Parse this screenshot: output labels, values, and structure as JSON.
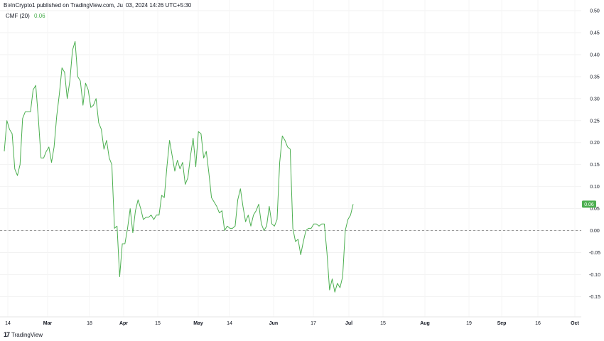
{
  "header": {
    "text": "BeInCrypto1 published on TradingView.com, Jul 03, 2024 14:26 UTC+5:30"
  },
  "indicator": {
    "label": "CMF (20)",
    "value": "0.06",
    "color": "#4caf50"
  },
  "logo": {
    "mark": "17",
    "text": "TradingView"
  },
  "chart_data": {
    "type": "line",
    "title": "",
    "xlabel": "",
    "ylabel": "",
    "ylim": [
      -0.15,
      0.5
    ],
    "y_ticks": [
      "0.50",
      "0.45",
      "0.40",
      "0.35",
      "0.30",
      "0.25",
      "0.20",
      "0.15",
      "0.10",
      "0.05",
      "0.00",
      "-0.05",
      "-0.10",
      "-0.15"
    ],
    "x_ticks": [
      "14",
      "Mar",
      "18",
      "Apr",
      "15",
      "May",
      "14",
      "Jun",
      "17",
      "Jul",
      "15",
      "Aug",
      "19",
      "Sep",
      "16",
      "Oct"
    ],
    "reference_line": 0.0,
    "last_value_label": "0.06",
    "series": [
      {
        "color": "#4caf50",
        "values": [
          0.18,
          0.25,
          0.23,
          0.22,
          0.14,
          0.125,
          0.15,
          0.255,
          0.27,
          0.27,
          0.27,
          0.32,
          0.33,
          0.255,
          0.165,
          0.165,
          0.18,
          0.19,
          0.155,
          0.19,
          0.26,
          0.31,
          0.37,
          0.36,
          0.3,
          0.34,
          0.41,
          0.43,
          0.35,
          0.34,
          0.285,
          0.335,
          0.32,
          0.28,
          0.285,
          0.3,
          0.245,
          0.23,
          0.185,
          0.205,
          0.165,
          0.15,
          0.005,
          0.01,
          -0.105,
          -0.03,
          -0.03,
          0.005,
          0.05,
          -0.005,
          0.045,
          0.07,
          0.05,
          0.025,
          0.03,
          0.03,
          0.035,
          0.025,
          0.035,
          0.035,
          0.08,
          0.075,
          0.145,
          0.205,
          0.17,
          0.135,
          0.16,
          0.14,
          0.155,
          0.105,
          0.12,
          0.17,
          0.21,
          0.145,
          0.225,
          0.22,
          0.165,
          0.18,
          0.13,
          0.075,
          0.065,
          0.055,
          0.04,
          0.045,
          0.0,
          0.01,
          0.005,
          0.005,
          0.01,
          0.07,
          0.095,
          0.055,
          0.02,
          0.035,
          0.01,
          0.035,
          0.045,
          0.06,
          0.015,
          0.0,
          0.01,
          0.055,
          0.015,
          0.01,
          0.025,
          0.155,
          0.215,
          0.205,
          0.19,
          0.185,
          0.005,
          -0.025,
          -0.02,
          -0.055,
          -0.025,
          0.0,
          0.005,
          0.005,
          0.015,
          0.015,
          0.01,
          0.015,
          0.015,
          -0.05,
          -0.135,
          -0.11,
          -0.14,
          -0.12,
          -0.13,
          -0.105,
          0.0,
          0.025,
          0.035,
          0.06
        ]
      }
    ]
  }
}
